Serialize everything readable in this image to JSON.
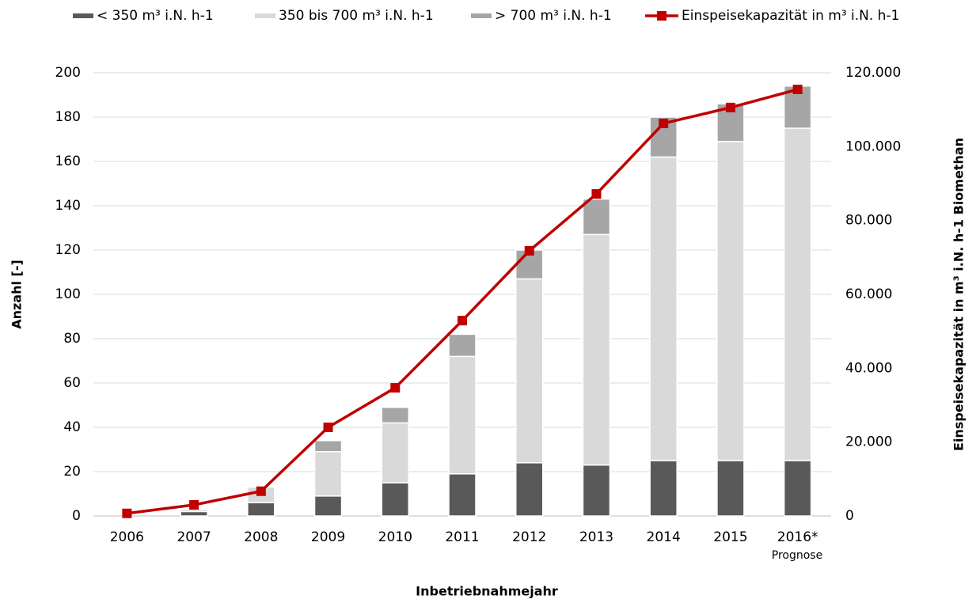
{
  "chart_data": {
    "type": "bar",
    "stacked": true,
    "categories": [
      "2006",
      "2007",
      "2008",
      "2009",
      "2010",
      "2011",
      "2012",
      "2013",
      "2014",
      "2015",
      "2016*"
    ],
    "annotation": "Prognose",
    "xlabel": "Inbetriebnahmejahr",
    "ylabel": "Anzahl [-]",
    "y2label": "Einspeisekapazität in m³ i.N. h-1 Biomethan",
    "ylim": [
      0,
      200
    ],
    "yticks": [
      0,
      20,
      40,
      60,
      80,
      100,
      120,
      140,
      160,
      180,
      200
    ],
    "y2lim": [
      0,
      120000
    ],
    "y2ticks": [
      0,
      {
        "value": 20000,
        "label": "20.000"
      },
      {
        "value": 40000,
        "label": "40.000"
      },
      {
        "value": 60000,
        "label": "60.000"
      },
      {
        "value": 80000,
        "label": "80.000"
      },
      {
        "value": 100000,
        "label": "100.000"
      },
      {
        "value": 120000,
        "label": "120.000"
      }
    ],
    "grid": true,
    "legend": "top",
    "series": [
      {
        "name": "< 350 m³  i.N. h-1",
        "color": "#595959",
        "type": "bar",
        "values": [
          0,
          2,
          6,
          9,
          15,
          19,
          24,
          23,
          25,
          25,
          25
        ]
      },
      {
        "name": "350 bis 700 m³  i.N. h-1",
        "color": "#d9d9d9",
        "type": "bar",
        "values": [
          0,
          1,
          7,
          20,
          27,
          53,
          83,
          104,
          137,
          144,
          150
        ]
      },
      {
        "name": "> 700 m³ i.N. h-1",
        "color": "#a6a6a6",
        "type": "bar",
        "values": [
          0,
          0,
          0,
          5,
          7,
          10,
          13,
          16,
          18,
          17,
          19
        ]
      },
      {
        "name": "Einspeisekapazität in m³ i.N. h-1",
        "color": "#c00000",
        "type": "line",
        "axis": "y2",
        "values": [
          700,
          3000,
          6700,
          24000,
          34700,
          52900,
          71800,
          87200,
          106300,
          110600,
          115500
        ]
      }
    ]
  }
}
